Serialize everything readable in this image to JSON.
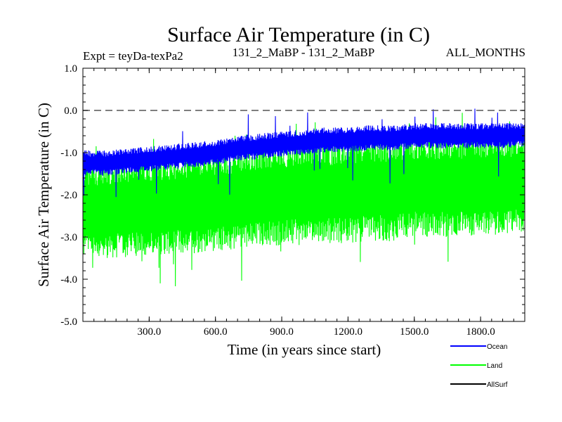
{
  "chart_data": {
    "type": "line",
    "title": "Surface Air Temperature (in C)",
    "subtitle_left": "Expt = teyDa-texPa2",
    "subtitle_center": "131_2_MaBP - 131_2_MaBP",
    "subtitle_right": "ALL_MONTHS",
    "xlabel": "Time (in years since start)",
    "ylabel": "Surface Air Temperature (in C)",
    "xlim": [
      0,
      2000
    ],
    "ylim": [
      -5.0,
      1.0
    ],
    "x_ticks": [
      300,
      600,
      900,
      1200,
      1500,
      1800
    ],
    "x_tick_labels": [
      "300.0",
      "600.0",
      "900.0",
      "1200.0",
      "1500.0",
      "1800.0"
    ],
    "y_ticks": [
      1.0,
      0.0,
      -1.0,
      -2.0,
      -3.0,
      -4.0,
      -5.0
    ],
    "y_tick_labels": [
      "1.0",
      "0.0",
      "-1.0",
      "-2.0",
      "-3.0",
      "-4.0",
      "-5.0"
    ],
    "reference_line": {
      "y": 0.0,
      "style": "dashed"
    },
    "series": [
      {
        "name": "Ocean",
        "color": "#0000ff",
        "x": [
          0,
          100,
          200,
          300,
          400,
          500,
          600,
          700,
          800,
          900,
          1000,
          1100,
          1200,
          1300,
          1400,
          1500,
          1600,
          1700,
          1800,
          1900,
          2000
        ],
        "band_low": [
          -1.55,
          -1.55,
          -1.5,
          -1.45,
          -1.4,
          -1.35,
          -1.3,
          -1.2,
          -1.15,
          -1.1,
          -1.05,
          -1.0,
          -1.0,
          -0.95,
          -0.95,
          -0.9,
          -0.9,
          -0.9,
          -0.9,
          -0.9,
          -0.85
        ],
        "band_high": [
          -0.95,
          -0.95,
          -0.9,
          -0.85,
          -0.8,
          -0.75,
          -0.7,
          -0.6,
          -0.55,
          -0.5,
          -0.45,
          -0.4,
          -0.4,
          -0.35,
          -0.35,
          -0.3,
          -0.3,
          -0.3,
          -0.3,
          -0.3,
          -0.3
        ]
      },
      {
        "name": "Land",
        "color": "#00ff00",
        "x": [
          0,
          100,
          200,
          300,
          400,
          500,
          600,
          700,
          800,
          900,
          1000,
          1100,
          1200,
          1300,
          1400,
          1500,
          1600,
          1700,
          1800,
          1900,
          2000
        ],
        "band_low": [
          -3.5,
          -3.5,
          -3.5,
          -3.45,
          -3.4,
          -3.4,
          -3.35,
          -3.3,
          -3.25,
          -3.2,
          -3.2,
          -3.15,
          -3.15,
          -3.1,
          -3.1,
          -3.0,
          -3.0,
          -3.0,
          -3.0,
          -3.0,
          -2.95
        ],
        "band_high": [
          -1.2,
          -1.2,
          -1.1,
          -1.1,
          -1.05,
          -1.0,
          -0.95,
          -0.9,
          -0.8,
          -0.75,
          -0.7,
          -0.7,
          -0.65,
          -0.6,
          -0.6,
          -0.55,
          -0.55,
          -0.55,
          -0.5,
          -0.5,
          -0.5
        ]
      },
      {
        "name": "AllSurf",
        "color": "#000000",
        "x": [],
        "values": []
      }
    ],
    "legend_placement": "bottom-right"
  }
}
